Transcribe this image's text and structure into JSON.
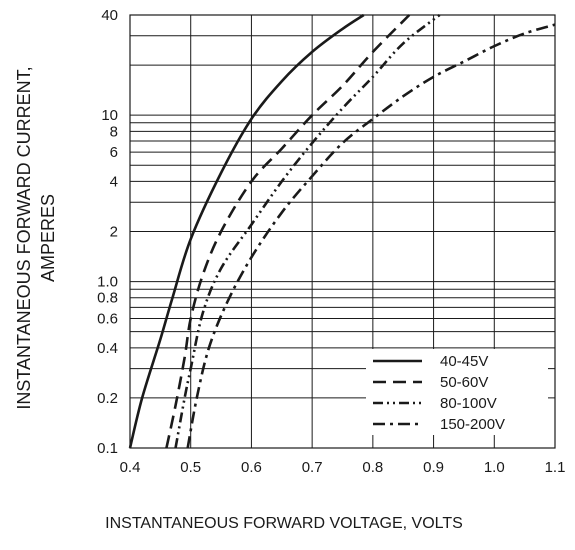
{
  "chart_data": {
    "type": "line",
    "title": "",
    "xlabel": "INSTANTANEOUS FORWARD VOLTAGE, VOLTS",
    "ylabel_line1": "INSTANTANEOUS FORWARD CURRENT,",
    "ylabel_line2": "AMPERES",
    "xlim": [
      0.4,
      1.1
    ],
    "ylim": [
      0.1,
      40
    ],
    "y_scale": "log",
    "grid": true,
    "legend_position": "bottom-right",
    "x_ticks": [
      {
        "value": 0.4,
        "label": "0.4"
      },
      {
        "value": 0.5,
        "label": "0.5"
      },
      {
        "value": 0.6,
        "label": "0.6"
      },
      {
        "value": 0.7,
        "label": "0.7"
      },
      {
        "value": 0.8,
        "label": "0.8"
      },
      {
        "value": 0.9,
        "label": "0.9"
      },
      {
        "value": 1.0,
        "label": "1.0"
      },
      {
        "value": 1.1,
        "label": "1.1"
      }
    ],
    "y_ticks": [
      {
        "value": 0.1,
        "label": "0.1"
      },
      {
        "value": 0.2,
        "label": "0.2"
      },
      {
        "value": 0.4,
        "label": "0.4"
      },
      {
        "value": 0.6,
        "label": "0.6"
      },
      {
        "value": 0.8,
        "label": "0.8"
      },
      {
        "value": 1.0,
        "label": "1.0"
      },
      {
        "value": 2,
        "label": "2"
      },
      {
        "value": 4,
        "label": "4"
      },
      {
        "value": 6,
        "label": "6"
      },
      {
        "value": 8,
        "label": "8"
      },
      {
        "value": 10,
        "label": "10"
      },
      {
        "value": 40,
        "label": "40"
      }
    ],
    "y_gridlines": [
      0.1,
      0.2,
      0.3,
      0.4,
      0.5,
      0.6,
      0.7,
      0.8,
      0.9,
      1,
      2,
      3,
      4,
      5,
      6,
      7,
      8,
      9,
      10,
      20,
      30,
      40
    ],
    "series": [
      {
        "name": "40-45V",
        "dash": "solid",
        "x": [
          0.4,
          0.42,
          0.45,
          0.47,
          0.5,
          0.55,
          0.6,
          0.65,
          0.7,
          0.75,
          0.785
        ],
        "y": [
          0.1,
          0.2,
          0.45,
          0.8,
          1.8,
          4.5,
          9.5,
          16,
          24,
          33,
          40
        ]
      },
      {
        "name": "50-60V",
        "dash": "dashed",
        "x": [
          0.46,
          0.475,
          0.49,
          0.5,
          0.52,
          0.55,
          0.6,
          0.65,
          0.7,
          0.75,
          0.8,
          0.86
        ],
        "y": [
          0.1,
          0.18,
          0.35,
          0.6,
          1.1,
          2,
          4,
          6.3,
          10,
          15,
          24,
          40
        ]
      },
      {
        "name": "80-100V",
        "dash": "dash-dot-dot",
        "x": [
          0.475,
          0.49,
          0.5,
          0.52,
          0.55,
          0.6,
          0.65,
          0.7,
          0.75,
          0.8,
          0.85,
          0.91
        ],
        "y": [
          0.1,
          0.2,
          0.3,
          0.65,
          1.2,
          2.2,
          4,
          6.8,
          11,
          17,
          27,
          40
        ]
      },
      {
        "name": "150-200V",
        "dash": "dash-dot",
        "x": [
          0.495,
          0.51,
          0.53,
          0.56,
          0.6,
          0.65,
          0.7,
          0.75,
          0.8,
          0.85,
          0.9,
          0.95,
          1.0,
          1.05,
          1.1
        ],
        "y": [
          0.1,
          0.2,
          0.4,
          0.75,
          1.4,
          2.6,
          4.3,
          6.8,
          9.5,
          13,
          17,
          21,
          26,
          31,
          35
        ]
      }
    ]
  }
}
